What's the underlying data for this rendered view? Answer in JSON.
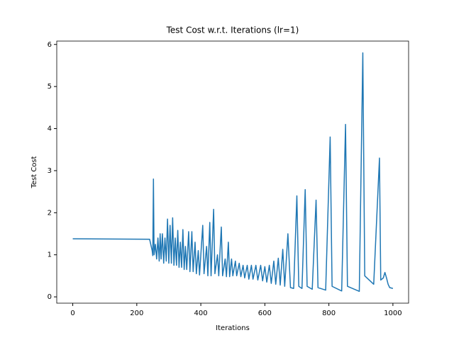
{
  "chart_data": {
    "type": "line",
    "title": "Test Cost w.r.t. Iterations (lr=1)",
    "x_label": "Iterations",
    "y_label": "Test Cost",
    "xlim": [
      -50,
      1049
    ],
    "ylim": [
      -0.15,
      6.08
    ],
    "xticks": [
      0,
      200,
      400,
      600,
      800,
      1000
    ],
    "yticks": [
      0,
      1,
      2,
      3,
      4,
      5,
      6
    ],
    "x": [
      0,
      240,
      248,
      250,
      252,
      254,
      258,
      262,
      266,
      270,
      273,
      276,
      280,
      284,
      288,
      292,
      296,
      300,
      304,
      308,
      312,
      316,
      320,
      324,
      328,
      332,
      336,
      340,
      344,
      348,
      352,
      356,
      362,
      366,
      372,
      376,
      382,
      386,
      392,
      396,
      406,
      410,
      418,
      422,
      428,
      432,
      440,
      444,
      452,
      456,
      464,
      468,
      476,
      480,
      486,
      490,
      496,
      500,
      508,
      512,
      520,
      525,
      532,
      537,
      545,
      550,
      558,
      563,
      572,
      578,
      587,
      593,
      600,
      606,
      614,
      620,
      628,
      634,
      642,
      648,
      656,
      662,
      672,
      680,
      690,
      700,
      706,
      716,
      726,
      732,
      748,
      760,
      766,
      790,
      804,
      810,
      840,
      852,
      858,
      895,
      906,
      912,
      940,
      958,
      962,
      970,
      975,
      980,
      985,
      990,
      1000
    ],
    "series": [
      {
        "name": "test cost",
        "color": "#1f77b4",
        "values": [
          1.38,
          1.37,
          1.1,
          0.98,
          2.8,
          1.0,
          1.25,
          0.9,
          1.4,
          0.85,
          1.5,
          0.9,
          1.5,
          0.8,
          1.4,
          0.85,
          1.85,
          0.8,
          1.7,
          0.8,
          1.88,
          0.75,
          1.4,
          0.75,
          1.58,
          0.7,
          1.3,
          0.7,
          1.6,
          0.65,
          1.2,
          0.65,
          1.55,
          0.6,
          1.55,
          0.6,
          1.3,
          0.55,
          1.1,
          0.52,
          1.7,
          0.55,
          1.2,
          0.5,
          1.77,
          0.5,
          2.08,
          0.55,
          1.0,
          0.5,
          1.66,
          0.5,
          0.9,
          0.48,
          1.3,
          0.48,
          0.9,
          0.5,
          0.85,
          0.5,
          0.8,
          0.48,
          0.75,
          0.45,
          0.75,
          0.42,
          0.75,
          0.42,
          0.75,
          0.4,
          0.75,
          0.38,
          0.72,
          0.35,
          0.75,
          0.32,
          0.85,
          0.3,
          0.92,
          0.28,
          1.13,
          0.25,
          1.5,
          0.22,
          0.2,
          2.4,
          0.25,
          0.2,
          2.55,
          0.25,
          0.18,
          2.3,
          0.22,
          0.16,
          3.8,
          0.25,
          0.14,
          4.1,
          0.25,
          0.13,
          5.8,
          0.5,
          0.3,
          3.3,
          0.4,
          0.45,
          0.58,
          0.45,
          0.3,
          0.22,
          0.2
        ]
      }
    ]
  }
}
